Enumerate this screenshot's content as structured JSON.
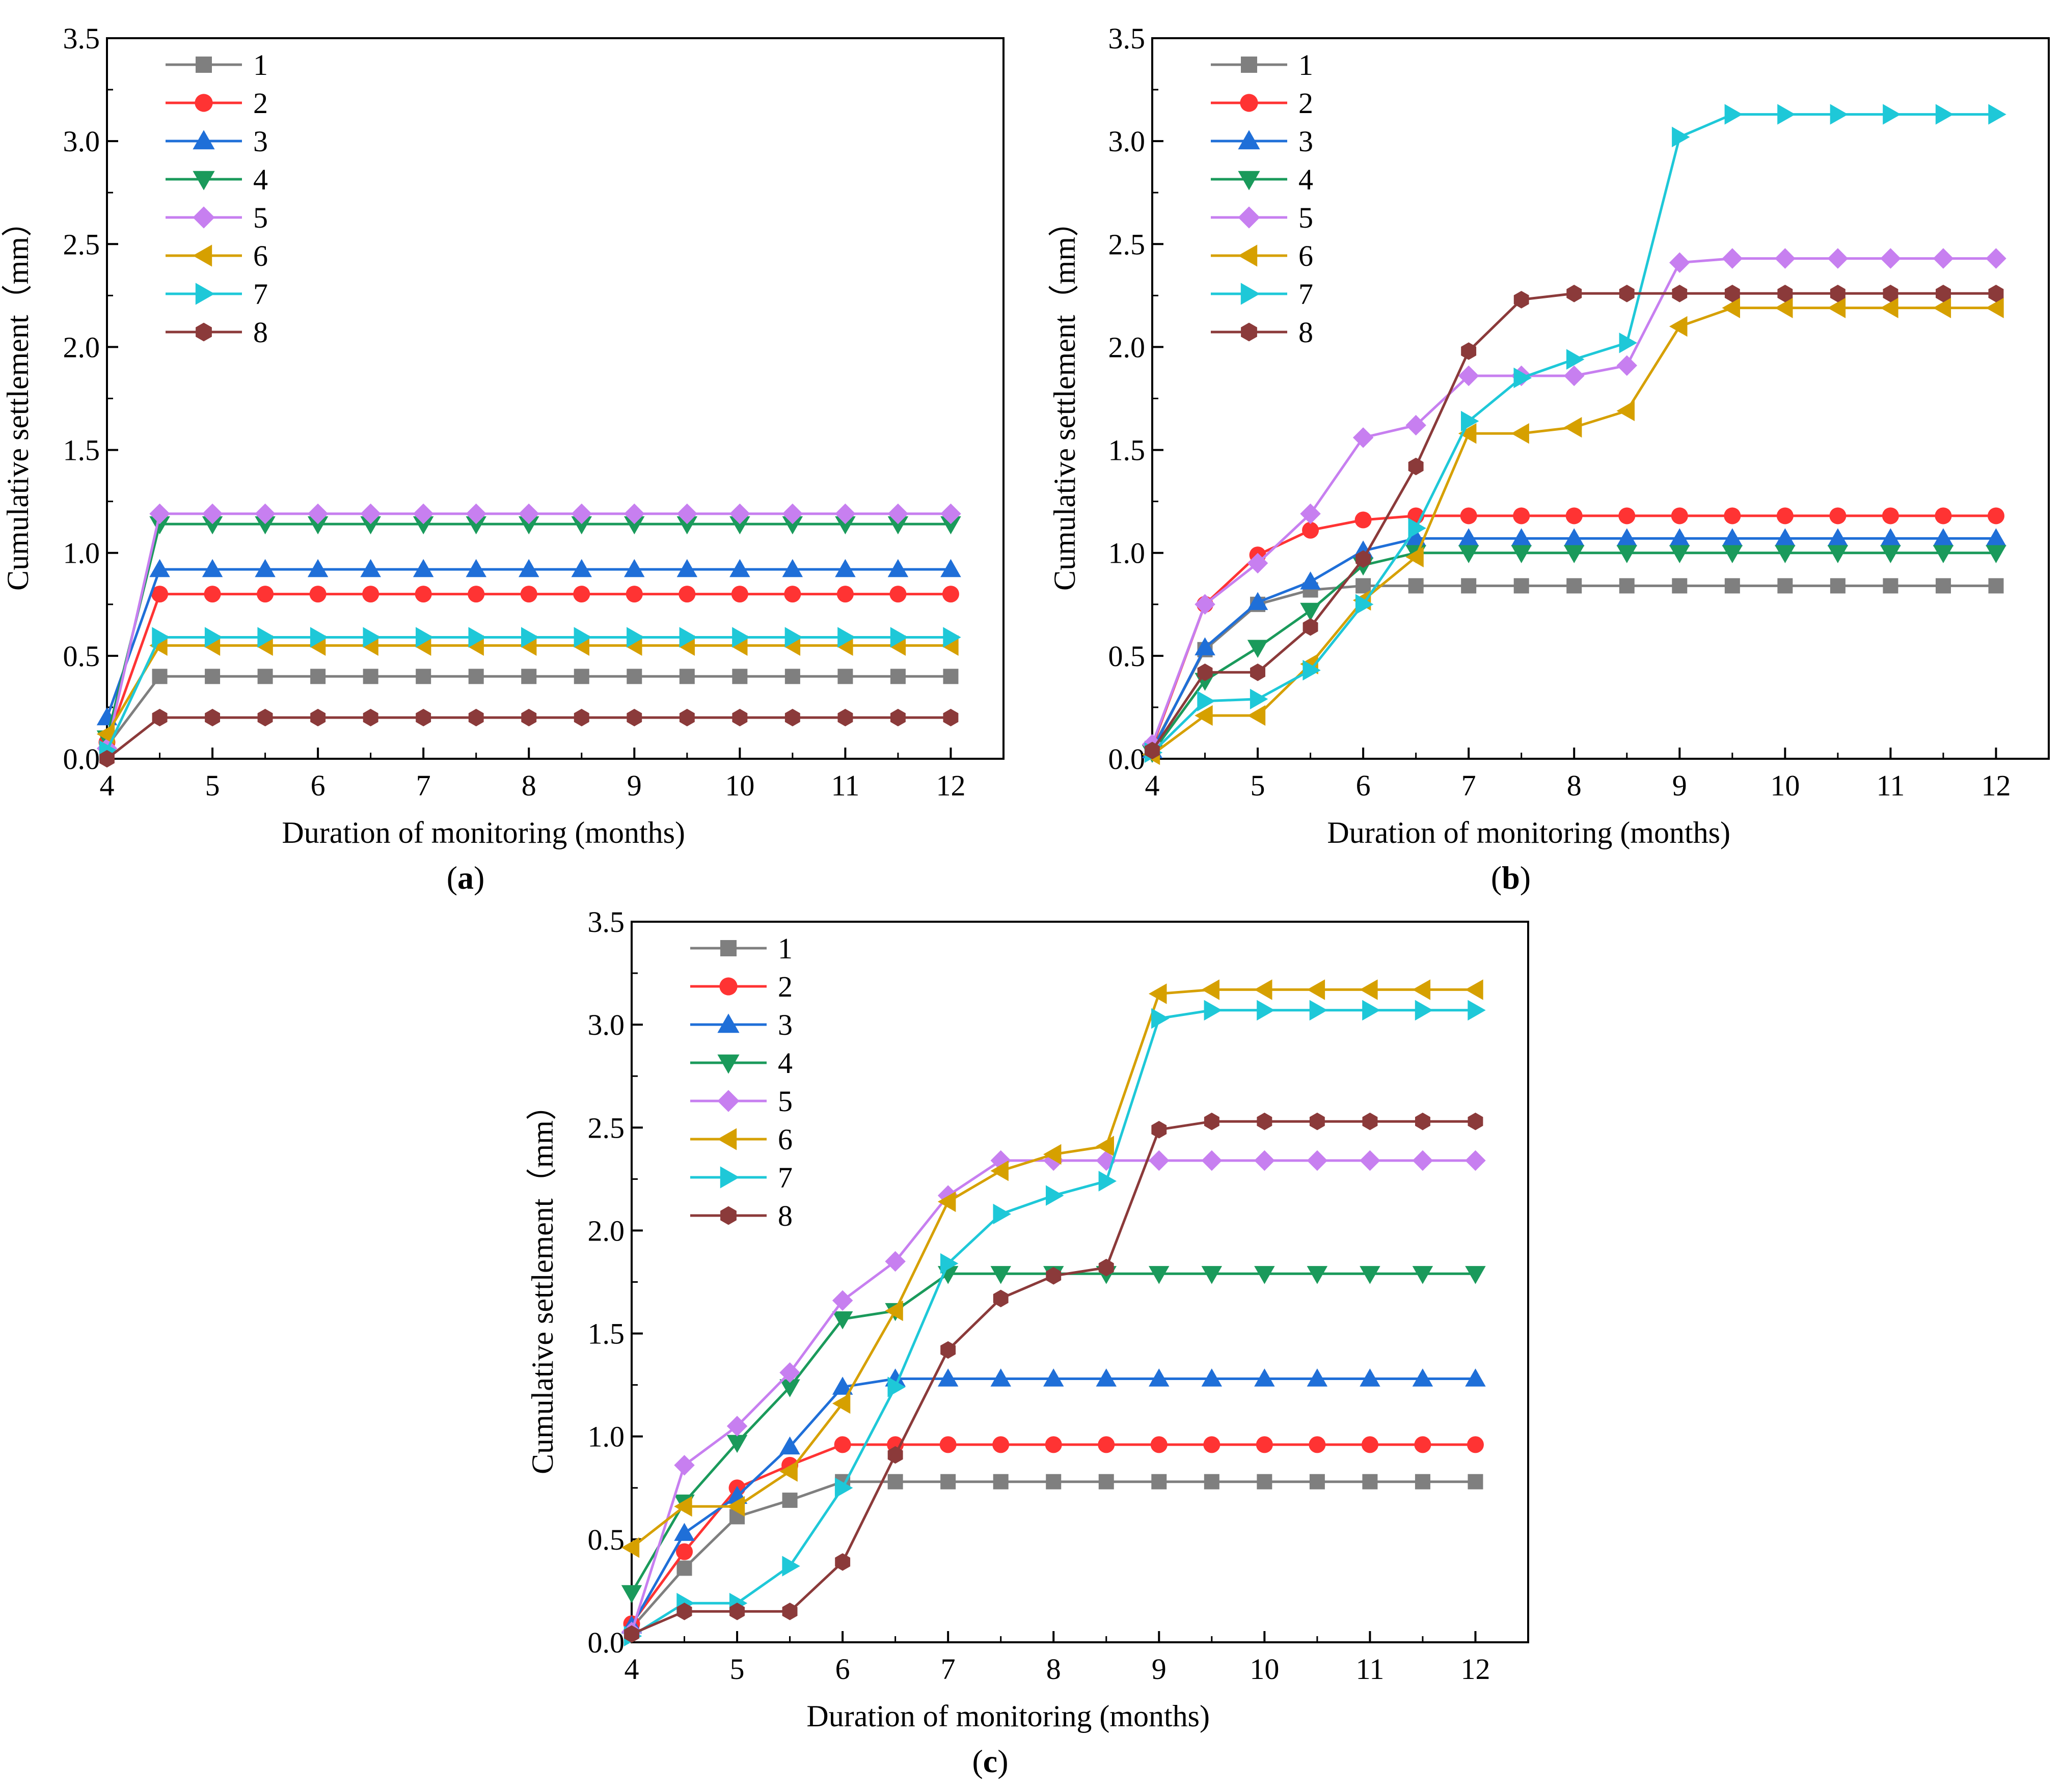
{
  "chart_data": [
    {
      "type": "line",
      "caption": "a",
      "xlabel": "Duration of monitoring (months)",
      "ylabel": "Cumulative settlement（mm）",
      "xlim": [
        4,
        12.5
      ],
      "ylim": [
        0,
        3.5
      ],
      "xticks": [
        "4",
        "5",
        "6",
        "7",
        "8",
        "9",
        "10",
        "11",
        "12"
      ],
      "yticks": [
        "0.0",
        "0.5",
        "1.0",
        "1.5",
        "2.0",
        "2.5",
        "3.0",
        "3.5"
      ],
      "legend_position": "top-left",
      "x": [
        4,
        4.5,
        5,
        5.5,
        6,
        6.5,
        7,
        7.5,
        8,
        8.5,
        9,
        9.5,
        10,
        10.5,
        11,
        11.5,
        12
      ],
      "series": [
        {
          "name": "1",
          "values": [
            0.06,
            0.4,
            0.4,
            0.4,
            0.4,
            0.4,
            0.4,
            0.4,
            0.4,
            0.4,
            0.4,
            0.4,
            0.4,
            0.4,
            0.4,
            0.4,
            0.4
          ]
        },
        {
          "name": "2",
          "values": [
            0.08,
            0.8,
            0.8,
            0.8,
            0.8,
            0.8,
            0.8,
            0.8,
            0.8,
            0.8,
            0.8,
            0.8,
            0.8,
            0.8,
            0.8,
            0.8,
            0.8
          ]
        },
        {
          "name": "3",
          "values": [
            0.2,
            0.92,
            0.92,
            0.92,
            0.92,
            0.92,
            0.92,
            0.92,
            0.92,
            0.92,
            0.92,
            0.92,
            0.92,
            0.92,
            0.92,
            0.92,
            0.92
          ]
        },
        {
          "name": "4",
          "values": [
            0.1,
            1.14,
            1.14,
            1.14,
            1.14,
            1.14,
            1.14,
            1.14,
            1.14,
            1.14,
            1.14,
            1.14,
            1.14,
            1.14,
            1.14,
            1.14,
            1.14
          ]
        },
        {
          "name": "5",
          "values": [
            0.05,
            1.19,
            1.19,
            1.19,
            1.19,
            1.19,
            1.19,
            1.19,
            1.19,
            1.19,
            1.19,
            1.19,
            1.19,
            1.19,
            1.19,
            1.19,
            1.19
          ]
        },
        {
          "name": "6",
          "values": [
            0.12,
            0.55,
            0.55,
            0.55,
            0.55,
            0.55,
            0.55,
            0.55,
            0.55,
            0.55,
            0.55,
            0.55,
            0.55,
            0.55,
            0.55,
            0.55,
            0.55
          ]
        },
        {
          "name": "7",
          "values": [
            0.04,
            0.59,
            0.59,
            0.59,
            0.59,
            0.59,
            0.59,
            0.59,
            0.59,
            0.59,
            0.59,
            0.59,
            0.59,
            0.59,
            0.59,
            0.59,
            0.59
          ]
        },
        {
          "name": "8",
          "values": [
            0.0,
            0.2,
            0.2,
            0.2,
            0.2,
            0.2,
            0.2,
            0.2,
            0.2,
            0.2,
            0.2,
            0.2,
            0.2,
            0.2,
            0.2,
            0.2,
            0.2
          ]
        }
      ]
    },
    {
      "type": "line",
      "caption": "b",
      "xlabel": "Duration of monitoring (months)",
      "ylabel": "Cumulative settlement（mm）",
      "xlim": [
        4,
        12.5
      ],
      "ylim": [
        0,
        3.5
      ],
      "xticks": [
        "4",
        "5",
        "6",
        "7",
        "8",
        "9",
        "10",
        "11",
        "12"
      ],
      "yticks": [
        "0.0",
        "0.5",
        "1.0",
        "1.5",
        "2.0",
        "2.5",
        "3.0",
        "3.5"
      ],
      "legend_position": "top-left",
      "x": [
        4,
        4.5,
        5,
        5.5,
        6,
        6.5,
        7,
        7.5,
        8,
        8.5,
        9,
        9.5,
        10,
        10.5,
        11,
        11.5,
        12
      ],
      "series": [
        {
          "name": "1",
          "values": [
            0.05,
            0.53,
            0.75,
            0.82,
            0.84,
            0.84,
            0.84,
            0.84,
            0.84,
            0.84,
            0.84,
            0.84,
            0.84,
            0.84,
            0.84,
            0.84,
            0.84
          ]
        },
        {
          "name": "2",
          "values": [
            0.06,
            0.75,
            0.99,
            1.11,
            1.16,
            1.18,
            1.18,
            1.18,
            1.18,
            1.18,
            1.18,
            1.18,
            1.18,
            1.18,
            1.18,
            1.18,
            1.18
          ]
        },
        {
          "name": "3",
          "values": [
            0.04,
            0.54,
            0.76,
            0.86,
            1.01,
            1.07,
            1.07,
            1.07,
            1.07,
            1.07,
            1.07,
            1.07,
            1.07,
            1.07,
            1.07,
            1.07,
            1.07
          ]
        },
        {
          "name": "4",
          "values": [
            0.03,
            0.38,
            0.54,
            0.72,
            0.94,
            1.0,
            1.0,
            1.0,
            1.0,
            1.0,
            1.0,
            1.0,
            1.0,
            1.0,
            1.0,
            1.0,
            1.0
          ]
        },
        {
          "name": "5",
          "values": [
            0.07,
            0.75,
            0.95,
            1.19,
            1.56,
            1.62,
            1.86,
            1.86,
            1.86,
            1.91,
            2.41,
            2.43,
            2.43,
            2.43,
            2.43,
            2.43,
            2.43
          ]
        },
        {
          "name": "6",
          "values": [
            0.02,
            0.21,
            0.21,
            0.46,
            0.77,
            0.98,
            1.58,
            1.58,
            1.61,
            1.69,
            2.1,
            2.19,
            2.19,
            2.19,
            2.19,
            2.19,
            2.19
          ]
        },
        {
          "name": "7",
          "values": [
            0.03,
            0.28,
            0.29,
            0.43,
            0.75,
            1.12,
            1.64,
            1.85,
            1.94,
            2.02,
            3.02,
            3.13,
            3.13,
            3.13,
            3.13,
            3.13,
            3.13
          ]
        },
        {
          "name": "8",
          "values": [
            0.04,
            0.42,
            0.42,
            0.64,
            0.97,
            1.42,
            1.98,
            2.23,
            2.26,
            2.26,
            2.26,
            2.26,
            2.26,
            2.26,
            2.26,
            2.26,
            2.26
          ]
        }
      ]
    },
    {
      "type": "line",
      "caption": "c",
      "xlabel": "Duration of monitoring (months)",
      "ylabel": "Cumulative settlement（mm）",
      "xlim": [
        4,
        12.5
      ],
      "ylim": [
        0,
        3.5
      ],
      "xticks": [
        "4",
        "5",
        "6",
        "7",
        "8",
        "9",
        "10",
        "11",
        "12"
      ],
      "yticks": [
        "0.0",
        "0.5",
        "1.0",
        "1.5",
        "2.0",
        "2.5",
        "3.0",
        "3.5"
      ],
      "legend_position": "top-left",
      "x": [
        4,
        4.5,
        5,
        5.5,
        6,
        6.5,
        7,
        7.5,
        8,
        8.5,
        9,
        9.5,
        10,
        10.5,
        11,
        11.5,
        12
      ],
      "series": [
        {
          "name": "1",
          "values": [
            0.07,
            0.36,
            0.61,
            0.69,
            0.78,
            0.78,
            0.78,
            0.78,
            0.78,
            0.78,
            0.78,
            0.78,
            0.78,
            0.78,
            0.78,
            0.78,
            0.78
          ]
        },
        {
          "name": "2",
          "values": [
            0.09,
            0.44,
            0.75,
            0.86,
            0.96,
            0.96,
            0.96,
            0.96,
            0.96,
            0.96,
            0.96,
            0.96,
            0.96,
            0.96,
            0.96,
            0.96,
            0.96
          ]
        },
        {
          "name": "3",
          "values": [
            0.08,
            0.53,
            0.71,
            0.95,
            1.24,
            1.28,
            1.28,
            1.28,
            1.28,
            1.28,
            1.28,
            1.28,
            1.28,
            1.28,
            1.28,
            1.28,
            1.28
          ]
        },
        {
          "name": "4",
          "values": [
            0.24,
            0.68,
            0.97,
            1.24,
            1.57,
            1.61,
            1.79,
            1.79,
            1.79,
            1.79,
            1.79,
            1.79,
            1.79,
            1.79,
            1.79,
            1.79,
            1.79
          ]
        },
        {
          "name": "5",
          "values": [
            0.05,
            0.86,
            1.05,
            1.31,
            1.66,
            1.85,
            2.17,
            2.34,
            2.34,
            2.34,
            2.34,
            2.34,
            2.34,
            2.34,
            2.34,
            2.34,
            2.34
          ]
        },
        {
          "name": "6",
          "values": [
            0.46,
            0.66,
            0.66,
            0.83,
            1.16,
            1.61,
            2.14,
            2.29,
            2.37,
            2.41,
            3.15,
            3.17,
            3.17,
            3.17,
            3.17,
            3.17,
            3.17
          ]
        },
        {
          "name": "7",
          "values": [
            0.03,
            0.19,
            0.19,
            0.37,
            0.75,
            1.24,
            1.84,
            2.08,
            2.17,
            2.24,
            3.03,
            3.07,
            3.07,
            3.07,
            3.07,
            3.07,
            3.07
          ]
        },
        {
          "name": "8",
          "values": [
            0.04,
            0.15,
            0.15,
            0.15,
            0.39,
            0.91,
            1.42,
            1.67,
            1.78,
            1.82,
            2.49,
            2.53,
            2.53,
            2.53,
            2.53,
            2.53,
            2.53
          ]
        }
      ]
    }
  ],
  "series_styles": [
    {
      "name": "1",
      "color": "#7f7f7f",
      "marker": "square"
    },
    {
      "name": "2",
      "color": "#ff3333",
      "marker": "circle"
    },
    {
      "name": "3",
      "color": "#1f6fd8",
      "marker": "triangle-up"
    },
    {
      "name": "4",
      "color": "#1a9a5b",
      "marker": "triangle-down"
    },
    {
      "name": "5",
      "color": "#c77ff0",
      "marker": "diamond"
    },
    {
      "name": "6",
      "color": "#d6a000",
      "marker": "triangle-left"
    },
    {
      "name": "7",
      "color": "#1ec8d8",
      "marker": "triangle-right"
    },
    {
      "name": "8",
      "color": "#8b3a3a",
      "marker": "hexagon"
    }
  ]
}
